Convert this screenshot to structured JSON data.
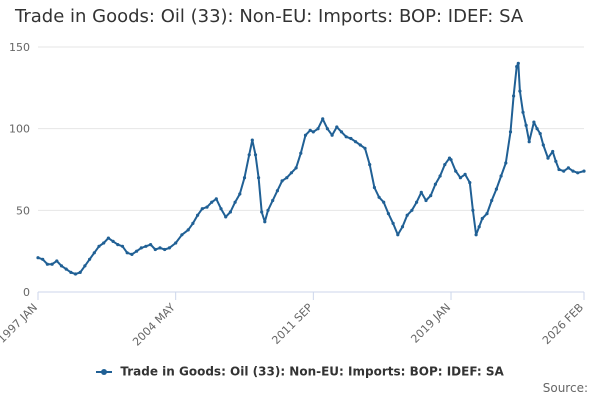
{
  "chart_data": {
    "type": "line",
    "title": "Trade in Goods: Oil (33): Non-EU: Imports: BOP: IDEF: SA",
    "xlabel": "",
    "ylabel": "",
    "ylim": [
      0,
      150
    ],
    "yticks": [
      "0",
      "50",
      "100",
      "150"
    ],
    "x_range": [
      "1997-01",
      "2026-02"
    ],
    "xticks": [
      {
        "label": "1997 JAN",
        "date": "1997-01"
      },
      {
        "label": "2004 MAY",
        "date": "2004-05"
      },
      {
        "label": "2011 SEP",
        "date": "2011-09"
      },
      {
        "label": "2019 JAN",
        "date": "2019-01"
      },
      {
        "label": "2026 FEB",
        "date": "2026-02"
      }
    ],
    "grid": true,
    "legend_position": "bottom",
    "series": [
      {
        "name": "Trade in Goods: Oil (33): Non-EU: Imports: BOP: IDEF: SA",
        "color": "#206095",
        "points": [
          [
            "1997-01",
            21
          ],
          [
            "1997-04",
            20
          ],
          [
            "1997-07",
            17
          ],
          [
            "1997-10",
            17
          ],
          [
            "1998-01",
            19
          ],
          [
            "1998-04",
            16
          ],
          [
            "1998-07",
            14
          ],
          [
            "1998-10",
            12
          ],
          [
            "1999-01",
            11
          ],
          [
            "1999-04",
            12
          ],
          [
            "1999-07",
            16
          ],
          [
            "1999-10",
            20
          ],
          [
            "2000-01",
            24
          ],
          [
            "2000-04",
            28
          ],
          [
            "2000-07",
            30
          ],
          [
            "2000-10",
            33
          ],
          [
            "2001-01",
            31
          ],
          [
            "2001-04",
            29
          ],
          [
            "2001-07",
            28
          ],
          [
            "2001-10",
            24
          ],
          [
            "2002-01",
            23
          ],
          [
            "2002-04",
            25
          ],
          [
            "2002-07",
            27
          ],
          [
            "2002-10",
            28
          ],
          [
            "2003-01",
            29
          ],
          [
            "2003-04",
            26
          ],
          [
            "2003-07",
            27
          ],
          [
            "2003-10",
            26
          ],
          [
            "2004-01",
            27
          ],
          [
            "2004-05",
            30
          ],
          [
            "2004-09",
            35
          ],
          [
            "2005-01",
            38
          ],
          [
            "2005-04",
            42
          ],
          [
            "2005-07",
            47
          ],
          [
            "2005-10",
            51
          ],
          [
            "2006-01",
            52
          ],
          [
            "2006-04",
            55
          ],
          [
            "2006-07",
            57
          ],
          [
            "2006-10",
            51
          ],
          [
            "2007-01",
            46
          ],
          [
            "2007-04",
            49
          ],
          [
            "2007-07",
            55
          ],
          [
            "2007-10",
            60
          ],
          [
            "2008-01",
            70
          ],
          [
            "2008-04",
            84
          ],
          [
            "2008-06",
            93
          ],
          [
            "2008-08",
            84
          ],
          [
            "2008-10",
            70
          ],
          [
            "2008-12",
            49
          ],
          [
            "2009-02",
            43
          ],
          [
            "2009-04",
            50
          ],
          [
            "2009-07",
            56
          ],
          [
            "2009-10",
            62
          ],
          [
            "2010-01",
            68
          ],
          [
            "2010-04",
            70
          ],
          [
            "2010-07",
            73
          ],
          [
            "2010-10",
            76
          ],
          [
            "2011-01",
            85
          ],
          [
            "2011-04",
            96
          ],
          [
            "2011-07",
            99
          ],
          [
            "2011-09",
            98
          ],
          [
            "2011-12",
            100
          ],
          [
            "2012-03",
            106
          ],
          [
            "2012-06",
            100
          ],
          [
            "2012-09",
            96
          ],
          [
            "2012-12",
            101
          ],
          [
            "2013-03",
            98
          ],
          [
            "2013-06",
            95
          ],
          [
            "2013-09",
            94
          ],
          [
            "2013-12",
            92
          ],
          [
            "2014-03",
            90
          ],
          [
            "2014-06",
            88
          ],
          [
            "2014-09",
            78
          ],
          [
            "2014-12",
            64
          ],
          [
            "2015-03",
            58
          ],
          [
            "2015-06",
            55
          ],
          [
            "2015-09",
            48
          ],
          [
            "2015-12",
            42
          ],
          [
            "2016-03",
            35
          ],
          [
            "2016-06",
            40
          ],
          [
            "2016-09",
            47
          ],
          [
            "2016-12",
            50
          ],
          [
            "2017-03",
            55
          ],
          [
            "2017-06",
            61
          ],
          [
            "2017-09",
            56
          ],
          [
            "2017-12",
            59
          ],
          [
            "2018-03",
            66
          ],
          [
            "2018-06",
            71
          ],
          [
            "2018-09",
            78
          ],
          [
            "2018-12",
            82
          ],
          [
            "2019-01",
            81
          ],
          [
            "2019-04",
            74
          ],
          [
            "2019-07",
            70
          ],
          [
            "2019-10",
            72
          ],
          [
            "2020-01",
            67
          ],
          [
            "2020-03",
            50
          ],
          [
            "2020-05",
            35
          ],
          [
            "2020-07",
            40
          ],
          [
            "2020-09",
            45
          ],
          [
            "2020-12",
            48
          ],
          [
            "2021-03",
            56
          ],
          [
            "2021-06",
            63
          ],
          [
            "2021-09",
            71
          ],
          [
            "2021-12",
            79
          ],
          [
            "2022-03",
            98
          ],
          [
            "2022-05",
            120
          ],
          [
            "2022-07",
            138
          ],
          [
            "2022-08",
            140
          ],
          [
            "2022-09",
            123
          ],
          [
            "2022-11",
            110
          ],
          [
            "2023-01",
            102
          ],
          [
            "2023-03",
            92
          ],
          [
            "2023-06",
            104
          ],
          [
            "2023-08",
            100
          ],
          [
            "2023-10",
            97
          ],
          [
            "2023-12",
            90
          ],
          [
            "2024-03",
            82
          ],
          [
            "2024-06",
            86
          ],
          [
            "2024-08",
            80
          ],
          [
            "2024-10",
            75
          ],
          [
            "2025-01",
            74
          ],
          [
            "2025-04",
            76
          ],
          [
            "2025-07",
            74
          ],
          [
            "2025-10",
            73
          ],
          [
            "2026-02",
            74
          ]
        ]
      }
    ]
  },
  "legend": {
    "label": "Trade in Goods: Oil (33): Non-EU: Imports: BOP: IDEF: SA",
    "color": "#206095"
  },
  "source": {
    "label": "Source:"
  }
}
